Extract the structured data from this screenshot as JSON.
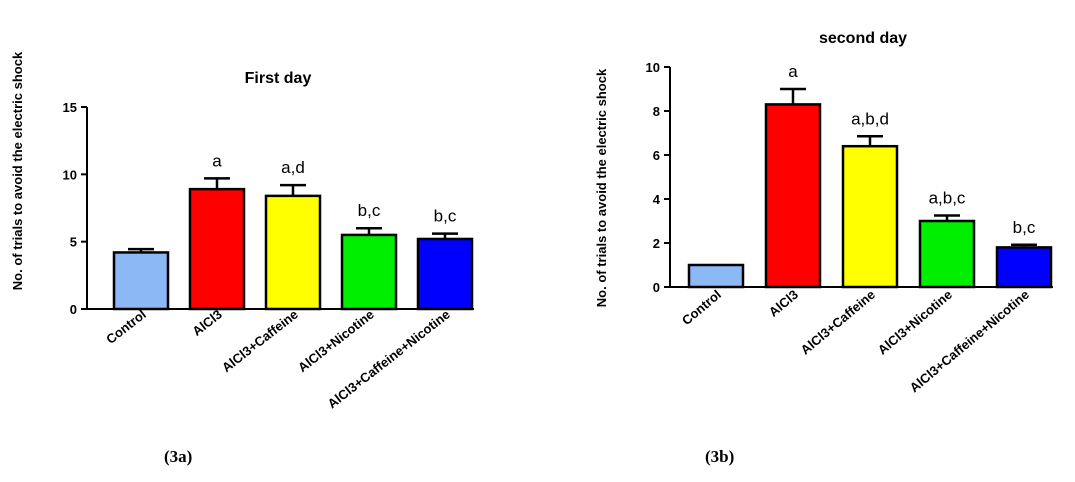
{
  "colors": {
    "Control": "#8cb8f5",
    "AlCl3": "#ff0000",
    "AlCl3+Caffeine": "#ffff00",
    "AlCl3+Nicotine": "#00ee00",
    "AlCl3+Caffeine+Nicotine": "#0000ff"
  },
  "captions": {
    "a": "(3a)",
    "b": "(3b)"
  },
  "chart_data": [
    {
      "type": "bar",
      "title": "First day",
      "ylabel": "No. of trials to avoid the electric shock",
      "xlabel": "",
      "ylim": [
        0,
        15
      ],
      "yticks": [
        0,
        5,
        10,
        15
      ],
      "grid": false,
      "categories": [
        "Control",
        "AlCl3",
        "AlCl3+Caffeine",
        "AlCl3+Nicotine",
        "AlCl3+Caffeine+Nicotine"
      ],
      "values": [
        4.2,
        8.9,
        8.4,
        5.5,
        5.2
      ],
      "errors": [
        0.25,
        0.8,
        0.8,
        0.5,
        0.4
      ],
      "annotations": [
        "",
        "a",
        "a,d",
        "b,c",
        "b,c"
      ]
    },
    {
      "type": "bar",
      "title": "second day",
      "ylabel": "No. of trials to avoid the electric shock",
      "xlabel": "",
      "ylim": [
        0,
        10
      ],
      "yticks": [
        0,
        2,
        4,
        6,
        8,
        10
      ],
      "grid": false,
      "categories": [
        "Control",
        "AlCl3",
        "AlCl3+Caffeine",
        "AlCl3+Nicotine",
        "AlCl3+Caffeine+Nicotine"
      ],
      "values": [
        1.0,
        8.3,
        6.4,
        3.0,
        1.8
      ],
      "errors": [
        0,
        0.7,
        0.45,
        0.25,
        0.12
      ],
      "annotations": [
        "",
        "a",
        "a,b,d",
        "a,b,c",
        "b,c"
      ]
    }
  ]
}
